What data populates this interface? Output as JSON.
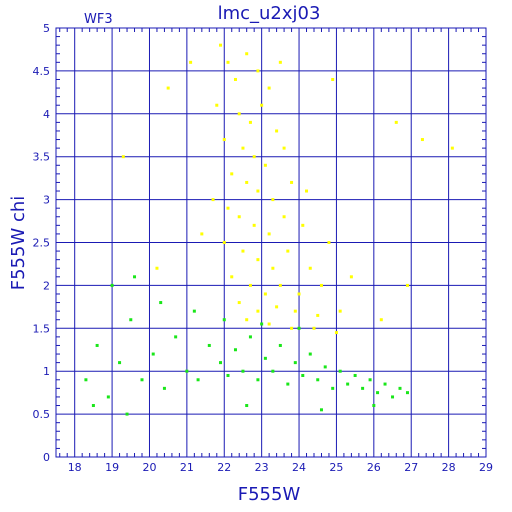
{
  "chart_data": {
    "type": "scatter",
    "title": "lmc_u2xj03",
    "subtitle": "WF3",
    "xlabel": "F555W",
    "ylabel": "F555W  chi",
    "xlim": [
      17.5,
      29
    ],
    "ylim": [
      0,
      5
    ],
    "xticks": [
      "18",
      "19",
      "20",
      "21",
      "22",
      "23",
      "24",
      "25",
      "26",
      "27",
      "28",
      "29"
    ],
    "yticks": [
      "0",
      "0.5",
      "1",
      "1.5",
      "2",
      "2.5",
      "3",
      "3.5",
      "4",
      "4.5",
      "5"
    ],
    "grid": true,
    "legend": "none",
    "colors": {
      "axis": "#1a1ab4",
      "grid": "#1a1ab4",
      "series_green": "#19e619",
      "series_yellow": "#ffff00"
    },
    "series": [
      {
        "color": "#ffff00",
        "points": [
          [
            21.9,
            4.8
          ],
          [
            22.1,
            4.6
          ],
          [
            22.3,
            4.4
          ],
          [
            22.6,
            4.7
          ],
          [
            22.9,
            4.5
          ],
          [
            23.2,
            4.3
          ],
          [
            21.8,
            4.1
          ],
          [
            22.4,
            4.0
          ],
          [
            22.7,
            3.9
          ],
          [
            23.0,
            4.1
          ],
          [
            23.4,
            3.8
          ],
          [
            22.0,
            3.7
          ],
          [
            22.5,
            3.6
          ],
          [
            22.8,
            3.5
          ],
          [
            23.1,
            3.4
          ],
          [
            23.6,
            3.6
          ],
          [
            22.2,
            3.3
          ],
          [
            22.6,
            3.2
          ],
          [
            22.9,
            3.1
          ],
          [
            23.3,
            3.0
          ],
          [
            23.8,
            3.2
          ],
          [
            21.7,
            3.0
          ],
          [
            22.1,
            2.9
          ],
          [
            22.4,
            2.8
          ],
          [
            22.8,
            2.7
          ],
          [
            23.2,
            2.6
          ],
          [
            23.6,
            2.8
          ],
          [
            24.1,
            2.7
          ],
          [
            22.0,
            2.5
          ],
          [
            22.5,
            2.4
          ],
          [
            22.9,
            2.3
          ],
          [
            23.3,
            2.2
          ],
          [
            23.7,
            2.4
          ],
          [
            24.3,
            2.2
          ],
          [
            22.2,
            2.1
          ],
          [
            22.7,
            2.0
          ],
          [
            23.1,
            1.9
          ],
          [
            23.5,
            2.0
          ],
          [
            24.0,
            1.9
          ],
          [
            24.6,
            2.0
          ],
          [
            22.4,
            1.8
          ],
          [
            22.9,
            1.7
          ],
          [
            23.4,
            1.75
          ],
          [
            23.9,
            1.7
          ],
          [
            24.5,
            1.65
          ],
          [
            25.1,
            1.7
          ],
          [
            22.6,
            1.6
          ],
          [
            23.2,
            1.55
          ],
          [
            23.8,
            1.5
          ],
          [
            24.4,
            1.5
          ],
          [
            25.0,
            1.45
          ],
          [
            21.4,
            2.6
          ],
          [
            24.8,
            2.5
          ],
          [
            25.4,
            2.1
          ],
          [
            26.2,
            1.6
          ],
          [
            27.3,
            3.7
          ],
          [
            28.1,
            3.6
          ],
          [
            20.5,
            4.3
          ],
          [
            21.1,
            4.6
          ],
          [
            24.9,
            4.4
          ],
          [
            26.6,
            3.9
          ],
          [
            19.3,
            3.5
          ],
          [
            20.2,
            2.2
          ],
          [
            26.9,
            2.0
          ],
          [
            24.2,
            3.1
          ],
          [
            23.5,
            4.6
          ]
        ]
      },
      {
        "color": "#19e619",
        "points": [
          [
            18.3,
            0.9
          ],
          [
            18.6,
            1.3
          ],
          [
            18.9,
            0.7
          ],
          [
            19.2,
            1.1
          ],
          [
            19.5,
            1.6
          ],
          [
            19.8,
            0.9
          ],
          [
            20.1,
            1.2
          ],
          [
            20.4,
            0.8
          ],
          [
            20.7,
            1.4
          ],
          [
            21.0,
            1.0
          ],
          [
            21.3,
            0.9
          ],
          [
            21.6,
            1.3
          ],
          [
            21.9,
            1.1
          ],
          [
            22.1,
            0.95
          ],
          [
            22.3,
            1.25
          ],
          [
            22.5,
            1.0
          ],
          [
            22.7,
            1.4
          ],
          [
            22.9,
            0.9
          ],
          [
            23.1,
            1.15
          ],
          [
            23.3,
            1.0
          ],
          [
            23.5,
            1.3
          ],
          [
            23.7,
            0.85
          ],
          [
            23.9,
            1.1
          ],
          [
            24.1,
            0.95
          ],
          [
            24.3,
            1.2
          ],
          [
            24.5,
            0.9
          ],
          [
            24.7,
            1.05
          ],
          [
            24.9,
            0.8
          ],
          [
            25.1,
            1.0
          ],
          [
            25.3,
            0.85
          ],
          [
            25.5,
            0.95
          ],
          [
            25.7,
            0.8
          ],
          [
            25.9,
            0.9
          ],
          [
            26.1,
            0.75
          ],
          [
            26.3,
            0.85
          ],
          [
            26.5,
            0.7
          ],
          [
            26.7,
            0.8
          ],
          [
            26.9,
            0.75
          ],
          [
            19.0,
            2.0
          ],
          [
            19.6,
            2.1
          ],
          [
            20.3,
            1.8
          ],
          [
            21.2,
            1.7
          ],
          [
            22.0,
            1.6
          ],
          [
            23.0,
            1.55
          ],
          [
            24.0,
            1.5
          ],
          [
            18.5,
            0.6
          ],
          [
            19.4,
            0.5
          ],
          [
            22.6,
            0.6
          ],
          [
            24.6,
            0.55
          ],
          [
            26.0,
            0.6
          ]
        ]
      }
    ]
  }
}
